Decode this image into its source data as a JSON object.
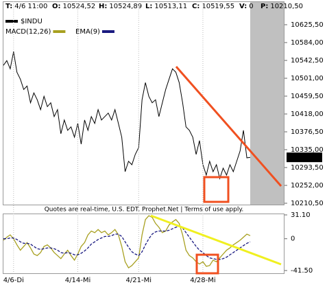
{
  "header": [
    {
      "label": "T:",
      "value": "4/6 11:00"
    },
    {
      "label": "O:",
      "value": "10524,52"
    },
    {
      "label": "H:",
      "value": "10524,89"
    },
    {
      "label": "L:",
      "value": "10513,11"
    },
    {
      "label": "C:",
      "value": "10519,55"
    },
    {
      "label": "V:",
      "value": "0"
    },
    {
      "label": "P:",
      "value": "10210,50"
    }
  ],
  "quote_notice": "Quotes are real-time, U.S. EDT. Prophet.Net | Terms of use apply.",
  "chart_data": [
    {
      "type": "line",
      "series": [
        {
          "name": "$INDU",
          "color": "#000000",
          "values": [
            10531,
            10542,
            10523,
            10563,
            10515,
            10499,
            10475,
            10483,
            10444,
            10467,
            10451,
            10428,
            10459,
            10435,
            10444,
            10412,
            10428,
            10372,
            10404,
            10380,
            10388,
            10364,
            10396,
            10348,
            10404,
            10380,
            10412,
            10396,
            10428,
            10404,
            10412,
            10420,
            10404,
            10428,
            10396,
            10364,
            10284,
            10308,
            10300,
            10324,
            10340,
            10451,
            10491,
            10459,
            10444,
            10451,
            10412,
            10444,
            10475,
            10499,
            10523,
            10515,
            10491,
            10444,
            10388,
            10380,
            10364,
            10324,
            10356,
            10300,
            10276,
            10308,
            10284,
            10300,
            10268,
            10292,
            10276,
            10300,
            10284,
            10308,
            10332,
            10380,
            10316,
            10317
          ]
        }
      ],
      "ylim": [
        10210.5,
        10625.5
      ],
      "yticks": [
        {
          "value": 10625.5,
          "label": "10625,50"
        },
        {
          "value": 10584,
          "label": "10584,00"
        },
        {
          "value": 10542.5,
          "label": "10542,50"
        },
        {
          "value": 10501,
          "label": "10501,00"
        },
        {
          "value": 10459.5,
          "label": "10459,50"
        },
        {
          "value": 10418,
          "label": "10418,00"
        },
        {
          "value": 10376.5,
          "label": "10376,50"
        },
        {
          "value": 10335,
          "label": "10335,00"
        },
        {
          "value": 10293.5,
          "label": "10293,50"
        },
        {
          "value": 10252,
          "label": "10252,00"
        },
        {
          "value": 10210.5,
          "label": "10210,50"
        }
      ],
      "last_price": {
        "value": 10317.2,
        "label": "10317,20"
      }
    },
    {
      "type": "line",
      "series": [
        {
          "name": "MACD(12,26)",
          "color": "#a8a020",
          "values": [
            -2,
            2,
            5,
            0,
            -8,
            -15,
            -10,
            -5,
            -12,
            -20,
            -22,
            -18,
            -10,
            -8,
            -12,
            -18,
            -22,
            -26,
            -20,
            -15,
            -22,
            -28,
            -20,
            -10,
            -5,
            5,
            10,
            8,
            12,
            8,
            10,
            5,
            8,
            12,
            5,
            -10,
            -30,
            -38,
            -35,
            -30,
            -25,
            5,
            25,
            30,
            28,
            20,
            15,
            8,
            10,
            18,
            22,
            25,
            20,
            5,
            -15,
            -22,
            -25,
            -30,
            -33,
            -30,
            -36,
            -35,
            -28,
            -30,
            -25,
            -20,
            -15,
            -12,
            -8,
            -5,
            -2,
            2,
            6,
            4
          ]
        },
        {
          "name": "EMA(9)",
          "color": "#1a1a80",
          "values": [
            0,
            0,
            1,
            1,
            -1,
            -4,
            -6,
            -6,
            -7,
            -10,
            -13,
            -14,
            -13,
            -12,
            -12,
            -13,
            -15,
            -18,
            -19,
            -18,
            -19,
            -21,
            -21,
            -19,
            -16,
            -12,
            -7,
            -4,
            -1,
            1,
            3,
            3,
            4,
            6,
            6,
            3,
            -4,
            -11,
            -17,
            -20,
            -22,
            -17,
            -8,
            0,
            6,
            9,
            10,
            10,
            10,
            11,
            13,
            15,
            16,
            14,
            8,
            2,
            -4,
            -10,
            -15,
            -18,
            -22,
            -25,
            -26,
            -27,
            -27,
            -26,
            -24,
            -21,
            -18,
            -15,
            -12,
            -9,
            -6,
            -4
          ]
        }
      ],
      "ylim": [
        -41.5,
        31.1
      ],
      "yticks": [
        {
          "value": 31.1,
          "label": "31.10"
        },
        0,
        {
          "value": -41.5,
          "label": "-41.50"
        }
      ],
      "xticks": [
        {
          "value": 3,
          "label": "4/6-Di"
        },
        {
          "value": 22,
          "label": "4/14-Mi"
        },
        {
          "value": 40,
          "label": "4/21-Mi"
        },
        {
          "value": 59,
          "label": "4/28-Mi"
        }
      ]
    }
  ]
}
